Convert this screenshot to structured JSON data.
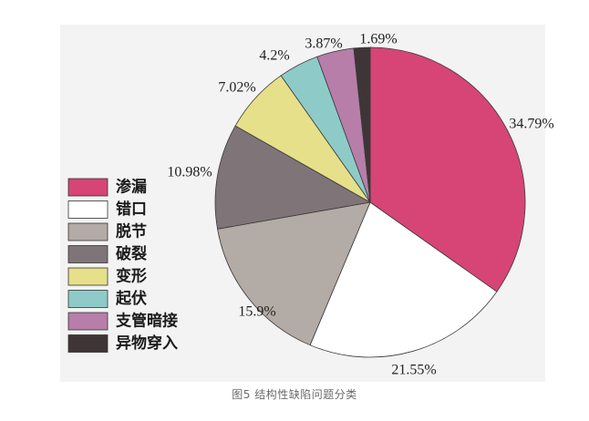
{
  "caption": "图5 结构性缺陷问题分类",
  "chart_data": {
    "type": "pie",
    "slices": [
      {
        "label": "渗漏",
        "value": 34.79,
        "display": "34.79%",
        "color": "#d64575"
      },
      {
        "label": "错口",
        "value": 21.55,
        "display": "21.55%",
        "color": "#ffffff"
      },
      {
        "label": "脱节",
        "value": 15.9,
        "display": "15.9%",
        "color": "#b3aba6"
      },
      {
        "label": "破裂",
        "value": 10.98,
        "display": "10.98%",
        "color": "#7f7478"
      },
      {
        "label": "变形",
        "value": 7.02,
        "display": "7.02%",
        "color": "#e6e08a"
      },
      {
        "label": "起伏",
        "value": 4.2,
        "display": "4.2%",
        "color": "#8ecbc8"
      },
      {
        "label": "支管暗接",
        "value": 3.87,
        "display": "3.87%",
        "color": "#b77eaa"
      },
      {
        "label": "异物穿入",
        "value": 1.69,
        "display": "1.69%",
        "color": "#3f3537"
      }
    ],
    "legend_position": "left"
  }
}
